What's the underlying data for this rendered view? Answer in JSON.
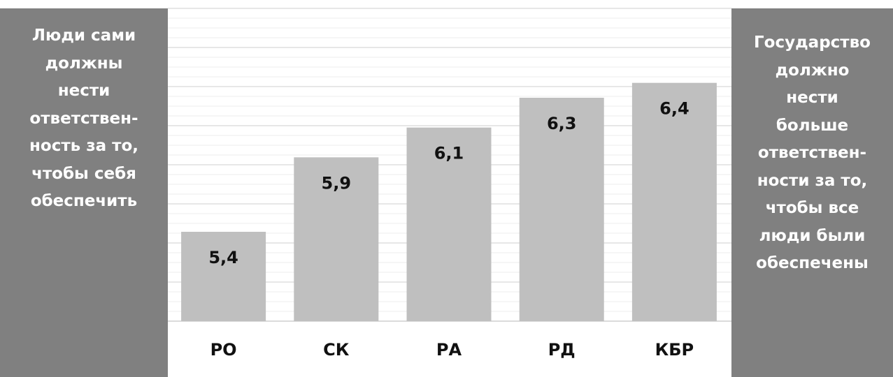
{
  "left_panel": {
    "lines": [
      "Люди сами",
      "должны",
      "нести",
      "ответствен-",
      "ность за то,",
      "чтобы себя",
      "обеспечить"
    ]
  },
  "right_panel": {
    "lines": [
      "Государство",
      "должно",
      "нести",
      "больше",
      "ответствен-",
      "ности за то,",
      "чтобы все",
      "люди были",
      "обеспечены"
    ]
  },
  "colors": {
    "panel": "#808080",
    "bar": "#bfbfbf",
    "gridline": "#d9d9d9"
  },
  "chart_data": {
    "type": "bar",
    "categories": [
      "РО",
      "СК",
      "РА",
      "РД",
      "КБР"
    ],
    "values": [
      5.4,
      5.9,
      6.1,
      6.3,
      6.4
    ],
    "value_labels": [
      "5,4",
      "5,9",
      "6,1",
      "6,3",
      "6,4"
    ],
    "title": "",
    "xlabel": "",
    "ylabel": "",
    "ylim": [
      4.8,
      6.9
    ],
    "grid": true,
    "legend": "none"
  }
}
